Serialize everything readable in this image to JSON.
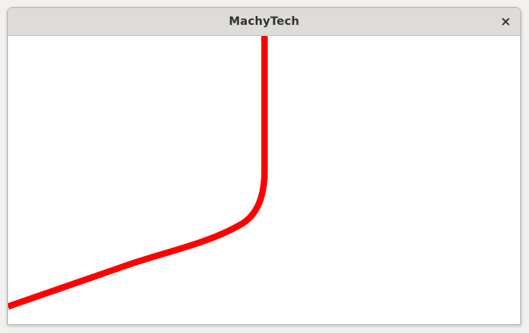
{
  "window": {
    "title": "MachyTech",
    "close_glyph": "×",
    "close_icon": "close-icon"
  },
  "canvas": {
    "background": "#ffffff",
    "path_color": "#ff0000"
  }
}
